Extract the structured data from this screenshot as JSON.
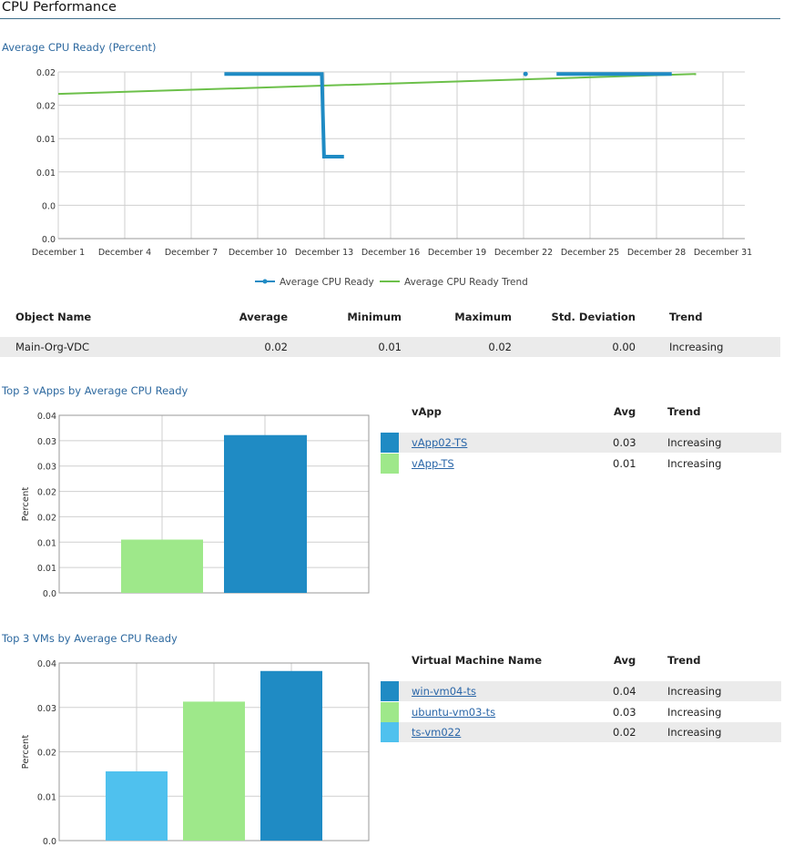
{
  "page_title": "CPU Performance",
  "line_chart_section": {
    "title": "Average CPU Ready (Percent)",
    "legend": [
      {
        "label": "Average CPU Ready",
        "color": "#1f8bc4"
      },
      {
        "label": "Average CPU Ready Trend",
        "color": "#6cc04a"
      }
    ]
  },
  "chart_data": [
    {
      "type": "line",
      "title": "Average CPU Ready (Percent)",
      "x_tick_labels": [
        "December 1",
        "December 4",
        "December 7",
        "December 10",
        "December 13",
        "December 16",
        "December 19",
        "December 22",
        "December 25",
        "December 28",
        "December 31"
      ],
      "y_tick_labels": [
        "0.0",
        "0.0",
        "0.01",
        "0.01",
        "0.02",
        "0.02"
      ],
      "xlim": [
        1,
        32
      ],
      "ylim": [
        0,
        0.025
      ],
      "series": [
        {
          "name": "Average CPU Ready",
          "color": "#1f8bc4",
          "segments": [
            [
              [
                8.5,
                0.0247
              ],
              [
                12.9,
                0.0247
              ],
              [
                13.0,
                0.0123
              ],
              [
                13.9,
                0.0123
              ]
            ],
            [
              [
                22.1,
                0.0247
              ]
            ],
            [
              [
                23.5,
                0.0247
              ],
              [
                28.7,
                0.0247
              ]
            ]
          ]
        },
        {
          "name": "Average CPU Ready Trend",
          "color": "#6cc04a",
          "segments": [
            [
              [
                1,
                0.0217
              ],
              [
                29.8,
                0.0247
              ]
            ]
          ]
        }
      ],
      "grid": true,
      "legend_position": "bottom-center"
    },
    {
      "type": "bar",
      "title": "Top 3 vApps by Average CPU Ready",
      "categories": [
        "vApp-TS",
        "vApp02-TS"
      ],
      "values": [
        0.0105,
        0.0311
      ],
      "colors": [
        "#9ee88a",
        "#1f8bc4"
      ],
      "ylabel": "Percent",
      "y_tick_labels": [
        "0.0",
        "0.01",
        "0.01",
        "0.02",
        "0.02",
        "0.03",
        "0.03",
        "0.04"
      ],
      "ylim": [
        0,
        0.035
      ],
      "grid": true
    },
    {
      "type": "bar",
      "title": "Top 3 VMs by Average CPU Ready",
      "categories": [
        "ts-vm022",
        "ubuntu-vm03-ts",
        "win-vm04-ts"
      ],
      "values": [
        0.0156,
        0.0313,
        0.0382
      ],
      "colors": [
        "#4fc1ee",
        "#9ee88a",
        "#1f8bc4"
      ],
      "ylabel": "Percent",
      "y_tick_labels": [
        "0.0",
        "0.01",
        "0.02",
        "0.03",
        "0.04"
      ],
      "ylim": [
        0,
        0.04
      ],
      "grid": true
    }
  ],
  "summary_table": {
    "headers": {
      "object_name": "Object Name",
      "average": "Average",
      "minimum": "Minimum",
      "maximum": "Maximum",
      "std_dev": "Std. Deviation",
      "trend": "Trend"
    },
    "rows": [
      {
        "object_name": "Main-Org-VDC",
        "average": "0.02",
        "minimum": "0.01",
        "maximum": "0.02",
        "std_dev": "0.00",
        "trend": "Increasing"
      }
    ]
  },
  "vapps_section": {
    "title": "Top 3 vApps by Average CPU Ready",
    "headers": {
      "name": "vApp",
      "avg": "Avg",
      "trend": "Trend"
    },
    "rows": [
      {
        "name": "vApp02-TS",
        "avg": "0.03",
        "trend": "Increasing",
        "color": "#1f8bc4"
      },
      {
        "name": "vApp-TS",
        "avg": "0.01",
        "trend": "Increasing",
        "color": "#9ee88a"
      }
    ]
  },
  "vms_section": {
    "title": "Top 3 VMs by Average CPU Ready",
    "headers": {
      "name": "Virtual Machine Name",
      "avg": "Avg",
      "trend": "Trend"
    },
    "rows": [
      {
        "name": "win-vm04-ts",
        "avg": "0.04",
        "trend": "Increasing",
        "color": "#1f8bc4"
      },
      {
        "name": "ubuntu-vm03-ts",
        "avg": "0.03",
        "trend": "Increasing",
        "color": "#9ee88a"
      },
      {
        "name": "ts-vm022",
        "avg": "0.02",
        "trend": "Increasing",
        "color": "#4fc1ee"
      }
    ]
  }
}
